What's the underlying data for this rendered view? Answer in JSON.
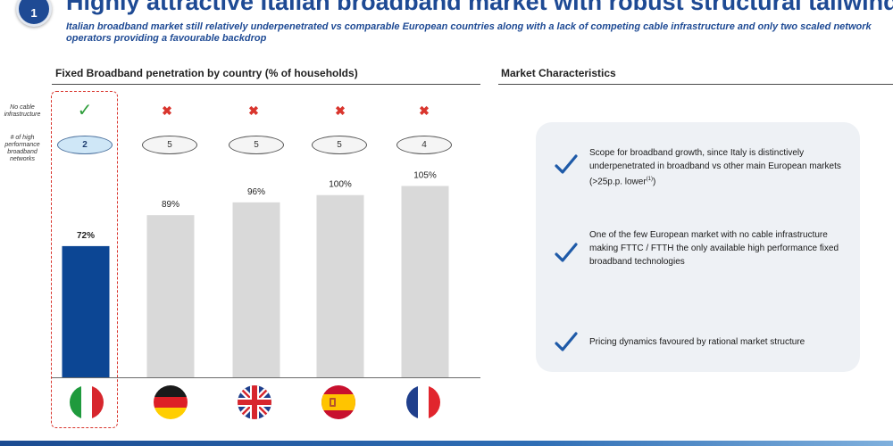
{
  "header": {
    "badge": "1",
    "title": "Highly attractive Italian broadband market with robust structural tailwinds",
    "subtitle": "Italian broadband market still relatively underpenetrated vs comparable European countries along with a lack of competing cable infrastructure and only two scaled network operators providing a favourable backdrop"
  },
  "left_section": {
    "title": "Fixed Broadband penetration by country (% of households)",
    "row_labels": {
      "cable": "No cable infrastructure",
      "networks": "# of high performance broadband networks"
    },
    "no_cable": [
      true,
      false,
      false,
      false,
      false
    ],
    "networks_count": [
      "2",
      "5",
      "5",
      "5",
      "4"
    ]
  },
  "chart_data": {
    "type": "bar",
    "title": "Fixed Broadband penetration by country (% of households)",
    "categories": [
      "Italy",
      "Germany",
      "United Kingdom",
      "Spain",
      "France"
    ],
    "values": [
      72,
      89,
      96,
      100,
      105
    ],
    "value_labels": [
      "72%",
      "89%",
      "96%",
      "100%",
      "105%"
    ],
    "unit": "%",
    "ylim": [
      0,
      110
    ],
    "grid": false,
    "legend": "none",
    "colors": [
      "#0c4694",
      "#d9d9d9",
      "#d9d9d9",
      "#d9d9d9",
      "#d9d9d9"
    ],
    "highlight_category": "Italy"
  },
  "flags": [
    "italy-flag-icon",
    "germany-flag-icon",
    "uk-flag-icon",
    "spain-flag-icon",
    "france-flag-icon"
  ],
  "right_section": {
    "title": "Market Characteristics",
    "items": [
      {
        "text": "Scope for broadband growth, since Italy is distinctively underpenetrated in broadband vs other main European markets (>25p.p. lower",
        "footnote": "(1)",
        "suffix": ")"
      },
      {
        "text": "One of the few European market with no cable infrastructure making FTTC / FTTH the only available high performance fixed broadband technologies"
      },
      {
        "text": "Pricing dynamics favoured by rational market structure"
      }
    ]
  },
  "colors": {
    "brand_blue": "#1e4a94",
    "italy_bar": "#0c4694",
    "other_bar": "#d9d9d9",
    "check_green": "#2e9e3b",
    "cross_red": "#d9352d",
    "panel_bg": "#eef1f5"
  }
}
